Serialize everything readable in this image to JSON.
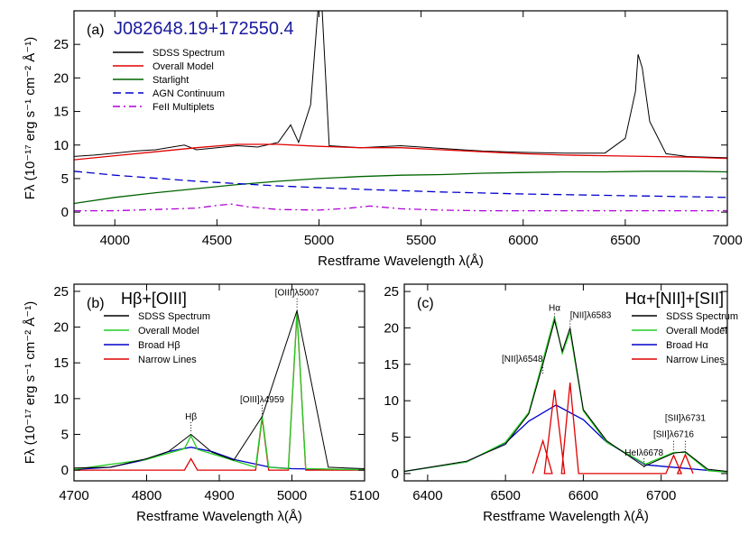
{
  "chart_data": [
    {
      "id": "a",
      "type": "line",
      "panel_label": "(a)",
      "object_name": "J082648.19+172550.4",
      "xlabel": "Restframe Wavelength λ(Å)",
      "ylabel": "Fλ (10⁻¹⁷ erg s⁻¹ cm⁻² Å⁻¹)",
      "xlim": [
        3800,
        7000
      ],
      "ylim": [
        -2,
        30
      ],
      "xticks": [
        4000,
        4500,
        5000,
        5500,
        6000,
        6500,
        7000
      ],
      "yticks": [
        0,
        5,
        10,
        15,
        20,
        25
      ],
      "legend": [
        {
          "name": "SDSS Spectrum",
          "color": "#000000",
          "dash": "solid"
        },
        {
          "name": "Overall Model",
          "color": "#e00000",
          "dash": "solid"
        },
        {
          "name": "Starlight",
          "color": "#006400",
          "dash": "solid"
        },
        {
          "name": "AGN Continuum",
          "color": "#0000cc",
          "dash": "dashed"
        },
        {
          "name": "FeII Multiplets",
          "color": "#b000d8",
          "dash": "dashdot"
        }
      ],
      "series": [
        {
          "name": "SDSS Spectrum",
          "x": [
            3800,
            3900,
            4000,
            4100,
            4200,
            4340,
            4400,
            4500,
            4600,
            4700,
            4800,
            4861,
            4900,
            4959,
            5007,
            5050,
            5200,
            5400,
            5600,
            5800,
            6000,
            6200,
            6400,
            6500,
            6550,
            6563,
            6583,
            6620,
            6700,
            6800,
            7000
          ],
          "y": [
            8.3,
            8.5,
            8.8,
            9.1,
            9.3,
            10.0,
            9.3,
            9.6,
            9.9,
            9.7,
            10.4,
            13.0,
            10.4,
            16.0,
            35.0,
            9.9,
            9.6,
            9.9,
            9.5,
            9.1,
            8.9,
            8.8,
            8.8,
            11.0,
            18.0,
            23.5,
            21.5,
            13.5,
            8.7,
            8.3,
            8.1
          ]
        },
        {
          "name": "Overall Model",
          "x": [
            3800,
            4000,
            4200,
            4400,
            4600,
            4800,
            5000,
            5200,
            5400,
            5600,
            5800,
            6000,
            6200,
            6400,
            6600,
            6800,
            7000
          ],
          "y": [
            7.8,
            8.4,
            9.0,
            9.6,
            10.1,
            10.1,
            9.8,
            9.6,
            9.6,
            9.3,
            9.0,
            8.7,
            8.5,
            8.4,
            8.3,
            8.2,
            8.0
          ]
        },
        {
          "name": "Starlight",
          "x": [
            3800,
            4000,
            4200,
            4400,
            4600,
            4800,
            5000,
            5200,
            5400,
            5600,
            5800,
            6000,
            6200,
            6400,
            6600,
            6800,
            7000
          ],
          "y": [
            1.3,
            2.2,
            2.9,
            3.5,
            4.1,
            4.6,
            5.0,
            5.3,
            5.5,
            5.6,
            5.8,
            5.9,
            6.0,
            6.0,
            6.1,
            6.1,
            6.0
          ]
        },
        {
          "name": "AGN Continuum",
          "x": [
            3800,
            4000,
            4400,
            4800,
            5200,
            5600,
            6000,
            6400,
            6800,
            7000
          ],
          "y": [
            6.1,
            5.5,
            4.6,
            3.9,
            3.4,
            3.0,
            2.7,
            2.5,
            2.3,
            2.2
          ]
        },
        {
          "name": "FeII Multiplets",
          "x": [
            3800,
            4000,
            4200,
            4400,
            4500,
            4570,
            4650,
            4800,
            5000,
            5150,
            5250,
            5400,
            5600,
            5800,
            6000,
            6500,
            7000
          ],
          "y": [
            0.2,
            0.2,
            0.4,
            0.6,
            1.0,
            1.2,
            0.8,
            0.4,
            0.3,
            0.6,
            0.9,
            0.5,
            0.3,
            0.2,
            0.2,
            0.2,
            0.2
          ]
        }
      ]
    },
    {
      "id": "b",
      "type": "line",
      "panel_label": "(b)",
      "title": "Hβ+[OIII]",
      "xlabel": "Restframe Wavelength λ(Å)",
      "ylabel": "Fλ (10⁻¹⁷ erg s⁻¹ cm⁻² Å⁻¹)",
      "xlim": [
        4700,
        5100
      ],
      "ylim": [
        -1.5,
        26
      ],
      "xticks": [
        4700,
        4800,
        4900,
        5000,
        5100
      ],
      "yticks": [
        0,
        5,
        10,
        15,
        20,
        25
      ],
      "legend": [
        {
          "name": "SDSS Spectrum",
          "color": "#000000"
        },
        {
          "name": "Overall Model",
          "color": "#22cc22"
        },
        {
          "name": "Broad Hβ",
          "color": "#0000cc"
        },
        {
          "name": "Narrow Lines",
          "color": "#e00000"
        }
      ],
      "annotations": [
        {
          "text": "Hβ",
          "x": 4861,
          "y": 5.2
        },
        {
          "text": "[OIII]λ4959",
          "x": 4959,
          "y": 7.6
        },
        {
          "text": "[OIII]λ5007",
          "x": 5007,
          "y": 22.5
        }
      ],
      "series": [
        {
          "name": "Broad Hβ",
          "x": [
            4700,
            4750,
            4800,
            4830,
            4861,
            4890,
            4920,
            4970,
            5000,
            5100
          ],
          "y": [
            0.1,
            0.4,
            1.5,
            2.6,
            3.2,
            2.6,
            1.5,
            0.4,
            0.2,
            0.05
          ]
        },
        {
          "name": "Narrow Lines",
          "x": [
            4700,
            4852,
            4861,
            4870,
            4950,
            4959,
            4968,
            4995,
            5007,
            5019,
            5100
          ],
          "y": [
            0.0,
            0.0,
            1.6,
            0.0,
            0.0,
            7.3,
            0.0,
            0.0,
            22.0,
            0.0,
            0.0
          ]
        },
        {
          "name": "Overall Model",
          "x": [
            4700,
            4800,
            4852,
            4861,
            4870,
            4950,
            4959,
            4968,
            4995,
            5007,
            5019,
            5100
          ],
          "y": [
            0.1,
            1.5,
            3.0,
            4.8,
            2.9,
            0.4,
            7.6,
            0.4,
            0.2,
            22.1,
            0.2,
            0.05
          ]
        },
        {
          "name": "SDSS Spectrum",
          "x": [
            4700,
            4750,
            4800,
            4830,
            4861,
            4890,
            4920,
            4959,
            5007,
            5050,
            5100
          ],
          "y": [
            0.3,
            0.4,
            1.6,
            2.6,
            5.0,
            2.5,
            1.4,
            7.5,
            22.3,
            0.4,
            0.2
          ]
        }
      ]
    },
    {
      "id": "c",
      "type": "line",
      "panel_label": "(c)",
      "title": "Hα+[NII]+[SII]",
      "xlabel": "Restframe Wavelength λ(Å)",
      "xlim": [
        6370,
        6785
      ],
      "ylim": [
        -1,
        26
      ],
      "xticks": [
        6400,
        6500,
        6600,
        6700
      ],
      "yticks": [
        0,
        5,
        10,
        15,
        20,
        25
      ],
      "legend": [
        {
          "name": "SDSS Spectrum",
          "color": "#000000"
        },
        {
          "name": "Overall Model",
          "color": "#22cc22"
        },
        {
          "name": "Broad Hα",
          "color": "#0000cc"
        },
        {
          "name": "Narrow Lines",
          "color": "#e00000"
        }
      ],
      "annotations": [
        {
          "text": "Hα",
          "x": 6563,
          "y": 20.5
        },
        {
          "text": "[NII]λ6583",
          "x": 6583,
          "y": 19.5
        },
        {
          "text": "[NII]λ6548",
          "x": 6548,
          "y": 13.5
        },
        {
          "text": "HeIλ6678",
          "x": 6678,
          "y": 0.6
        },
        {
          "text": "[SII]λ6716",
          "x": 6716,
          "y": 3.0
        },
        {
          "text": "[SII]λ6731",
          "x": 6731,
          "y": 3.0
        }
      ],
      "series": [
        {
          "name": "Broad Hα",
          "x": [
            6370,
            6450,
            6500,
            6530,
            6565,
            6600,
            6630,
            6680,
            6785
          ],
          "y": [
            0.3,
            1.6,
            4.2,
            7.2,
            9.4,
            7.4,
            4.3,
            1.2,
            0.2
          ]
        },
        {
          "name": "Narrow Lines",
          "x": [
            6535,
            6548,
            6560,
            6550,
            6563,
            6576,
            6572,
            6583,
            6594,
            6706,
            6716,
            6726,
            6721,
            6731,
            6741
          ],
          "y": [
            0.0,
            4.5,
            0.0,
            0.0,
            11.5,
            0.0,
            0.0,
            12.5,
            0.0,
            0.0,
            2.5,
            0.0,
            0.0,
            2.6,
            0.0
          ]
        },
        {
          "name": "Overall Model",
          "x": [
            6370,
            6450,
            6500,
            6530,
            6548,
            6563,
            6573,
            6583,
            6600,
            6630,
            6680,
            6716,
            6731,
            6760,
            6785
          ],
          "y": [
            0.3,
            1.6,
            4.3,
            8.4,
            15.5,
            21.5,
            16.5,
            19.5,
            8.6,
            4.3,
            1.3,
            2.9,
            2.9,
            0.4,
            0.2
          ]
        },
        {
          "name": "SDSS Spectrum",
          "x": [
            6370,
            6450,
            6500,
            6530,
            6548,
            6563,
            6573,
            6583,
            6600,
            6630,
            6678,
            6716,
            6731,
            6760,
            6785
          ],
          "y": [
            0.3,
            1.7,
            4.0,
            8.2,
            15.0,
            21.0,
            16.8,
            20.0,
            8.8,
            4.5,
            1.0,
            2.8,
            3.0,
            0.6,
            0.3
          ]
        }
      ]
    }
  ]
}
